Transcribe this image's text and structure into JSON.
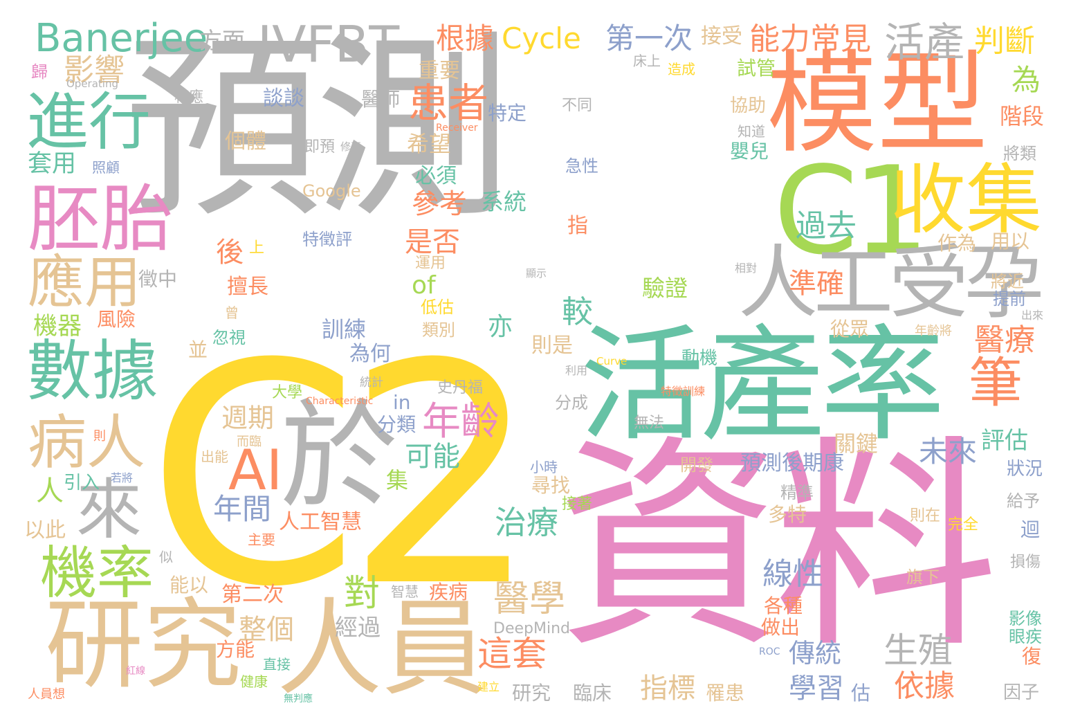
{
  "palette": {
    "gray": "#b4b4b4",
    "yellow": "#ffd92f",
    "orange": "#fc8d62",
    "green": "#66c2a5",
    "pink": "#e78ac3",
    "tan": "#e5c494",
    "lime": "#a6d854",
    "blue": "#8da0cb"
  },
  "words": [
    {
      "text": "預測",
      "color": "gray"
    },
    {
      "text": "C2",
      "color": "yellow"
    },
    {
      "text": "資料",
      "color": "pink"
    },
    {
      "text": "模型",
      "color": "orange"
    },
    {
      "text": "活產率",
      "color": "green"
    },
    {
      "text": "C1",
      "color": "lime"
    },
    {
      "text": "收集",
      "color": "yellow"
    },
    {
      "text": "人工受孕",
      "color": "gray"
    },
    {
      "text": "研究",
      "color": "tan"
    },
    {
      "text": "人員",
      "color": "tan"
    },
    {
      "text": "於",
      "color": "gray"
    },
    {
      "text": "胚胎",
      "color": "pink"
    },
    {
      "text": "進行",
      "color": "green"
    },
    {
      "text": "數據",
      "color": "green"
    },
    {
      "text": "應用",
      "color": "tan"
    },
    {
      "text": "病人",
      "color": "tan"
    },
    {
      "text": "機率",
      "color": "lime"
    },
    {
      "text": "來",
      "color": "gray"
    },
    {
      "text": "AI",
      "color": "orange"
    },
    {
      "text": "IVFBT",
      "color": "gray"
    },
    {
      "text": "Banerjee",
      "color": "green"
    },
    {
      "text": "方面",
      "color": "gray"
    },
    {
      "text": "影響",
      "color": "tan"
    },
    {
      "text": "根據",
      "color": "orange"
    },
    {
      "text": "Cycle",
      "color": "yellow"
    },
    {
      "text": "第一次",
      "color": "blue"
    },
    {
      "text": "接受",
      "color": "tan"
    },
    {
      "text": "能力常見",
      "color": "orange"
    },
    {
      "text": "活產",
      "color": "gray"
    },
    {
      "text": "判斷",
      "color": "yellow"
    },
    {
      "text": "患者",
      "color": "orange"
    },
    {
      "text": "重要",
      "color": "tan"
    },
    {
      "text": "過去",
      "color": "green"
    },
    {
      "text": "筆",
      "color": "orange"
    },
    {
      "text": "年齡",
      "color": "pink"
    },
    {
      "text": "Operating",
      "color": "gray"
    },
    {
      "text": "歸",
      "color": "pink"
    },
    {
      "text": "相應",
      "color": "gray"
    },
    {
      "text": "談談",
      "color": "blue"
    },
    {
      "text": "醫師",
      "color": "gray"
    },
    {
      "text": "特定",
      "color": "blue"
    },
    {
      "text": "不同",
      "color": "gray"
    },
    {
      "text": "協助",
      "color": "tan"
    },
    {
      "text": "試管",
      "color": "lime"
    },
    {
      "text": "床上",
      "color": "gray"
    },
    {
      "text": "造成",
      "color": "yellow"
    },
    {
      "text": "為",
      "color": "lime"
    },
    {
      "text": "階段",
      "color": "orange"
    },
    {
      "text": "個體",
      "color": "tan"
    },
    {
      "text": "套用",
      "color": "green"
    },
    {
      "text": "照顧",
      "color": "blue"
    },
    {
      "text": "即預",
      "color": "gray"
    },
    {
      "text": "修正",
      "color": "gray"
    },
    {
      "text": "Receiver",
      "color": "orange"
    },
    {
      "text": "急性",
      "color": "blue"
    },
    {
      "text": "希望",
      "color": "tan"
    },
    {
      "text": "知道",
      "color": "gray"
    },
    {
      "text": "嬰兒",
      "color": "green"
    },
    {
      "text": "將類",
      "color": "gray"
    },
    {
      "text": "Google",
      "color": "tan"
    },
    {
      "text": "必須",
      "color": "green"
    },
    {
      "text": "參考",
      "color": "orange"
    },
    {
      "text": "系統",
      "color": "green"
    },
    {
      "text": "特徵評",
      "color": "blue"
    },
    {
      "text": "指",
      "color": "orange"
    },
    {
      "text": "是否",
      "color": "orange"
    },
    {
      "text": "後",
      "color": "orange"
    },
    {
      "text": "作為",
      "color": "tan"
    },
    {
      "text": "用以",
      "color": "tan"
    },
    {
      "text": "上",
      "color": "yellow"
    },
    {
      "text": "運用",
      "color": "tan"
    },
    {
      "text": "顯示",
      "color": "gray"
    },
    {
      "text": "相對",
      "color": "gray"
    },
    {
      "text": "徵中",
      "color": "gray"
    },
    {
      "text": "擅長",
      "color": "orange"
    },
    {
      "text": "驗證",
      "color": "lime"
    },
    {
      "text": "準確",
      "color": "orange"
    },
    {
      "text": "將近",
      "color": "tan"
    },
    {
      "text": "提前",
      "color": "blue"
    },
    {
      "text": "of",
      "color": "lime"
    },
    {
      "text": "低估",
      "color": "yellow"
    },
    {
      "text": "較",
      "color": "green"
    },
    {
      "text": "機器",
      "color": "lime"
    },
    {
      "text": "風險",
      "color": "orange"
    },
    {
      "text": "曾",
      "color": "tan"
    },
    {
      "text": "忽視",
      "color": "green"
    },
    {
      "text": "訓練",
      "color": "blue"
    },
    {
      "text": "類別",
      "color": "tan"
    },
    {
      "text": "亦",
      "color": "green"
    },
    {
      "text": "從眾",
      "color": "tan"
    },
    {
      "text": "醫療",
      "color": "orange"
    },
    {
      "text": "年齡將",
      "color": "tan"
    },
    {
      "text": "出來",
      "color": "gray"
    },
    {
      "text": "並",
      "color": "tan"
    },
    {
      "text": "則是",
      "color": "tan"
    },
    {
      "text": "為何",
      "color": "blue"
    },
    {
      "text": "動機",
      "color": "green"
    },
    {
      "text": "Curve",
      "color": "yellow"
    },
    {
      "text": "利用",
      "color": "gray"
    },
    {
      "text": "統計",
      "color": "gray"
    },
    {
      "text": "史丹福",
      "color": "gray"
    },
    {
      "text": "特徵訓練",
      "color": "orange"
    },
    {
      "text": "分成",
      "color": "gray"
    },
    {
      "text": "in",
      "color": "blue"
    },
    {
      "text": "Characteristic",
      "color": "orange"
    },
    {
      "text": "大學",
      "color": "lime"
    },
    {
      "text": "週期",
      "color": "tan"
    },
    {
      "text": "分類",
      "color": "blue"
    },
    {
      "text": "無法",
      "color": "gray"
    },
    {
      "text": "評估",
      "color": "green"
    },
    {
      "text": "未來",
      "color": "blue"
    },
    {
      "text": "關鍵",
      "color": "tan"
    },
    {
      "text": "可能",
      "color": "green"
    },
    {
      "text": "而臨",
      "color": "tan"
    },
    {
      "text": "則",
      "color": "orange"
    },
    {
      "text": "出能",
      "color": "tan"
    },
    {
      "text": "集",
      "color": "lime"
    },
    {
      "text": "預測後期康",
      "color": "blue"
    },
    {
      "text": "狀況",
      "color": "blue"
    },
    {
      "text": "人",
      "color": "lime"
    },
    {
      "text": "引入",
      "color": "green"
    },
    {
      "text": "若將",
      "color": "blue"
    },
    {
      "text": "年間",
      "color": "blue"
    },
    {
      "text": "小時",
      "color": "blue"
    },
    {
      "text": "開發",
      "color": "tan"
    },
    {
      "text": "精準",
      "color": "gray"
    },
    {
      "text": "給予",
      "color": "gray"
    },
    {
      "text": "尋找",
      "color": "tan"
    },
    {
      "text": "以此",
      "color": "tan"
    },
    {
      "text": "人工智慧",
      "color": "orange"
    },
    {
      "text": "治療",
      "color": "green"
    },
    {
      "text": "多特",
      "color": "tan"
    },
    {
      "text": "接著",
      "color": "lime"
    },
    {
      "text": "則在",
      "color": "tan"
    },
    {
      "text": "完全",
      "color": "yellow"
    },
    {
      "text": "迴",
      "color": "blue"
    },
    {
      "text": "主要",
      "color": "orange"
    },
    {
      "text": "似",
      "color": "gray"
    },
    {
      "text": "線性",
      "color": "blue"
    },
    {
      "text": "損傷",
      "color": "gray"
    },
    {
      "text": "能以",
      "color": "tan"
    },
    {
      "text": "第二次",
      "color": "orange"
    },
    {
      "text": "對",
      "color": "lime"
    },
    {
      "text": "醫學",
      "color": "tan"
    },
    {
      "text": "疾病",
      "color": "orange"
    },
    {
      "text": "智慧",
      "color": "gray"
    },
    {
      "text": "各種",
      "color": "orange"
    },
    {
      "text": "旗下",
      "color": "tan"
    },
    {
      "text": "影像",
      "color": "green"
    },
    {
      "text": "眼疾",
      "color": "green"
    },
    {
      "text": "整個",
      "color": "tan"
    },
    {
      "text": "經過",
      "color": "gray"
    },
    {
      "text": "做出",
      "color": "orange"
    },
    {
      "text": "DeepMind",
      "color": "gray"
    },
    {
      "text": "這套",
      "color": "orange"
    },
    {
      "text": "生殖",
      "color": "gray"
    },
    {
      "text": "傳統",
      "color": "blue"
    },
    {
      "text": "方能",
      "color": "orange"
    },
    {
      "text": "直接",
      "color": "green"
    },
    {
      "text": "健康",
      "color": "lime"
    },
    {
      "text": "ROC",
      "color": "blue"
    },
    {
      "text": "復",
      "color": "orange"
    },
    {
      "text": "指標",
      "color": "tan"
    },
    {
      "text": "罹患",
      "color": "tan"
    },
    {
      "text": "學習",
      "color": "blue"
    },
    {
      "text": "估",
      "color": "blue"
    },
    {
      "text": "依據",
      "color": "orange"
    },
    {
      "text": "研究",
      "color": "gray"
    },
    {
      "text": "臨床",
      "color": "gray"
    },
    {
      "text": "建立",
      "color": "yellow"
    },
    {
      "text": "因子",
      "color": "gray"
    },
    {
      "text": "人員想",
      "color": "orange"
    },
    {
      "text": "紅線",
      "color": "pink"
    },
    {
      "text": "無判應",
      "color": "green"
    }
  ]
}
